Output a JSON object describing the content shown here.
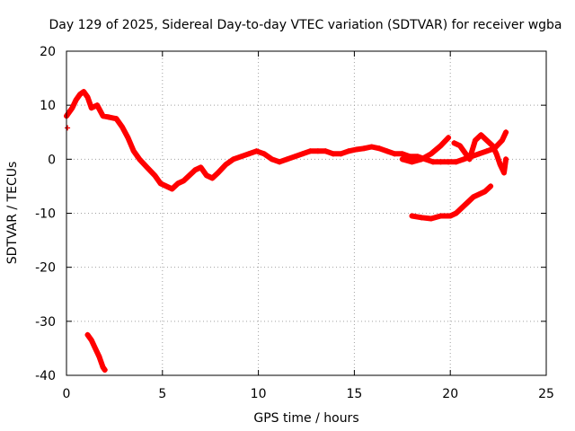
{
  "chart_data": {
    "type": "scatter",
    "title": "Day 129 of 2025, Sidereal Day-to-day VTEC variation (SDTVAR) for receiver wgba",
    "xlabel": "GPS time / hours",
    "ylabel": "SDTVAR / TECUs",
    "xlim": [
      0,
      25
    ],
    "ylim": [
      -40,
      20
    ],
    "x_ticks": [
      0,
      5,
      10,
      15,
      20,
      25
    ],
    "y_ticks": [
      -40,
      -30,
      -20,
      -10,
      0,
      10,
      20
    ],
    "grid": true,
    "marker": "+",
    "color": "#ff0000",
    "series": [
      {
        "name": "main-track",
        "points": [
          [
            0.0,
            8.0
          ],
          [
            0.3,
            9.5
          ],
          [
            0.5,
            11.0
          ],
          [
            0.7,
            12.0
          ],
          [
            0.9,
            12.5
          ],
          [
            1.1,
            11.5
          ],
          [
            1.3,
            9.5
          ],
          [
            1.6,
            10.0
          ],
          [
            1.9,
            8.0
          ],
          [
            2.2,
            7.8
          ],
          [
            2.6,
            7.5
          ],
          [
            2.9,
            6.0
          ],
          [
            3.2,
            4.0
          ],
          [
            3.5,
            1.5
          ],
          [
            3.8,
            0.0
          ],
          [
            4.2,
            -1.5
          ],
          [
            4.6,
            -3.0
          ],
          [
            4.9,
            -4.5
          ],
          [
            5.2,
            -5.0
          ],
          [
            5.5,
            -5.5
          ],
          [
            5.8,
            -4.5
          ],
          [
            6.1,
            -4.0
          ],
          [
            6.4,
            -3.0
          ],
          [
            6.7,
            -2.0
          ],
          [
            7.0,
            -1.5
          ],
          [
            7.3,
            -3.0
          ],
          [
            7.6,
            -3.5
          ],
          [
            7.9,
            -2.5
          ],
          [
            8.3,
            -1.0
          ],
          [
            8.7,
            0.0
          ],
          [
            9.1,
            0.5
          ],
          [
            9.5,
            1.0
          ],
          [
            9.9,
            1.5
          ],
          [
            10.3,
            1.0
          ],
          [
            10.7,
            0.0
          ],
          [
            11.1,
            -0.5
          ],
          [
            11.5,
            0.0
          ],
          [
            11.9,
            0.5
          ],
          [
            12.3,
            1.0
          ],
          [
            12.7,
            1.5
          ],
          [
            13.1,
            1.5
          ],
          [
            13.5,
            1.5
          ],
          [
            13.9,
            1.0
          ],
          [
            14.3,
            1.0
          ],
          [
            14.7,
            1.5
          ],
          [
            15.1,
            1.8
          ],
          [
            15.5,
            2.0
          ],
          [
            15.9,
            2.3
          ],
          [
            16.3,
            2.0
          ],
          [
            16.7,
            1.5
          ],
          [
            17.1,
            1.0
          ],
          [
            17.5,
            1.0
          ],
          [
            17.9,
            0.5
          ],
          [
            18.3,
            0.5
          ],
          [
            18.7,
            0.0
          ],
          [
            19.1,
            -0.5
          ],
          [
            19.5,
            -0.5
          ],
          [
            19.9,
            -0.5
          ],
          [
            20.3,
            -0.5
          ],
          [
            20.7,
            0.0
          ],
          [
            21.1,
            0.5
          ],
          [
            21.5,
            1.0
          ],
          [
            21.9,
            1.5
          ],
          [
            22.3,
            2.0
          ],
          [
            22.7,
            3.5
          ],
          [
            22.9,
            5.0
          ]
        ]
      },
      {
        "name": "upper-branch",
        "points": [
          [
            17.5,
            0.0
          ],
          [
            18.0,
            -0.5
          ],
          [
            18.5,
            0.0
          ],
          [
            19.0,
            1.0
          ],
          [
            19.5,
            2.5
          ],
          [
            19.9,
            4.0
          ]
        ]
      },
      {
        "name": "right-loops",
        "points": [
          [
            20.2,
            3.0
          ],
          [
            20.5,
            2.5
          ],
          [
            20.8,
            1.0
          ],
          [
            21.0,
            0.0
          ],
          [
            21.3,
            3.5
          ],
          [
            21.6,
            4.5
          ],
          [
            21.9,
            3.5
          ],
          [
            22.2,
            2.5
          ],
          [
            22.4,
            1.0
          ],
          [
            22.6,
            -1.0
          ],
          [
            22.8,
            -2.5
          ],
          [
            22.9,
            0.0
          ]
        ]
      },
      {
        "name": "lower-segment",
        "points": [
          [
            18.0,
            -10.5
          ],
          [
            18.5,
            -10.8
          ],
          [
            19.0,
            -11.0
          ],
          [
            19.5,
            -10.5
          ],
          [
            20.0,
            -10.5
          ],
          [
            20.3,
            -10.0
          ],
          [
            20.6,
            -9.0
          ],
          [
            20.9,
            -8.0
          ],
          [
            21.2,
            -7.0
          ],
          [
            21.5,
            -6.5
          ],
          [
            21.8,
            -6.0
          ],
          [
            22.1,
            -5.0
          ]
        ]
      },
      {
        "name": "low-outliers",
        "points": [
          [
            1.1,
            -32.5
          ],
          [
            1.3,
            -33.5
          ],
          [
            1.5,
            -35.0
          ],
          [
            1.7,
            -36.5
          ],
          [
            1.9,
            -38.5
          ],
          [
            2.0,
            -39.0
          ]
        ]
      },
      {
        "name": "isolated-point",
        "points": [
          [
            0.05,
            5.8
          ]
        ]
      }
    ]
  }
}
